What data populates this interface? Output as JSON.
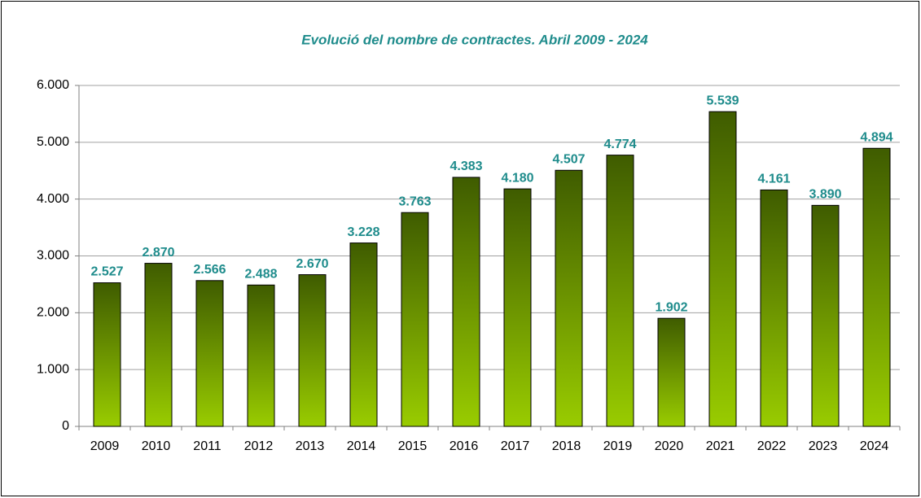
{
  "chart_data": {
    "type": "bar",
    "title": "Evolució del nombre de contractes. Abril 2009 - 2024",
    "categories": [
      "2009",
      "2010",
      "2011",
      "2012",
      "2013",
      "2014",
      "2015",
      "2016",
      "2017",
      "2018",
      "2019",
      "2020",
      "2021",
      "2022",
      "2023",
      "2024"
    ],
    "values": [
      2527,
      2870,
      2566,
      2488,
      2670,
      3228,
      3763,
      4383,
      4180,
      4507,
      4774,
      1902,
      5539,
      4161,
      3890,
      4894
    ],
    "value_labels": [
      "2.527",
      "2.870",
      "2.566",
      "2.488",
      "2.670",
      "3.228",
      "3.763",
      "4.383",
      "4.180",
      "4.507",
      "4.774",
      "1.902",
      "5.539",
      "4.161",
      "3.890",
      "4.894"
    ],
    "color": [
      "#3f5c00",
      "#99cc00"
    ],
    "ylim": [
      0,
      6000
    ],
    "yticks": [
      0,
      {
        "value": 1000,
        "label": "1.000"
      },
      {
        "value": 2000,
        "label": "2.000"
      },
      {
        "value": 3000,
        "label": "3.000"
      },
      {
        "value": 4000,
        "label": "4.000"
      },
      {
        "value": 5000,
        "label": "5.000"
      },
      {
        "value": 6000,
        "label": "6.000"
      }
    ],
    "grid": true
  }
}
